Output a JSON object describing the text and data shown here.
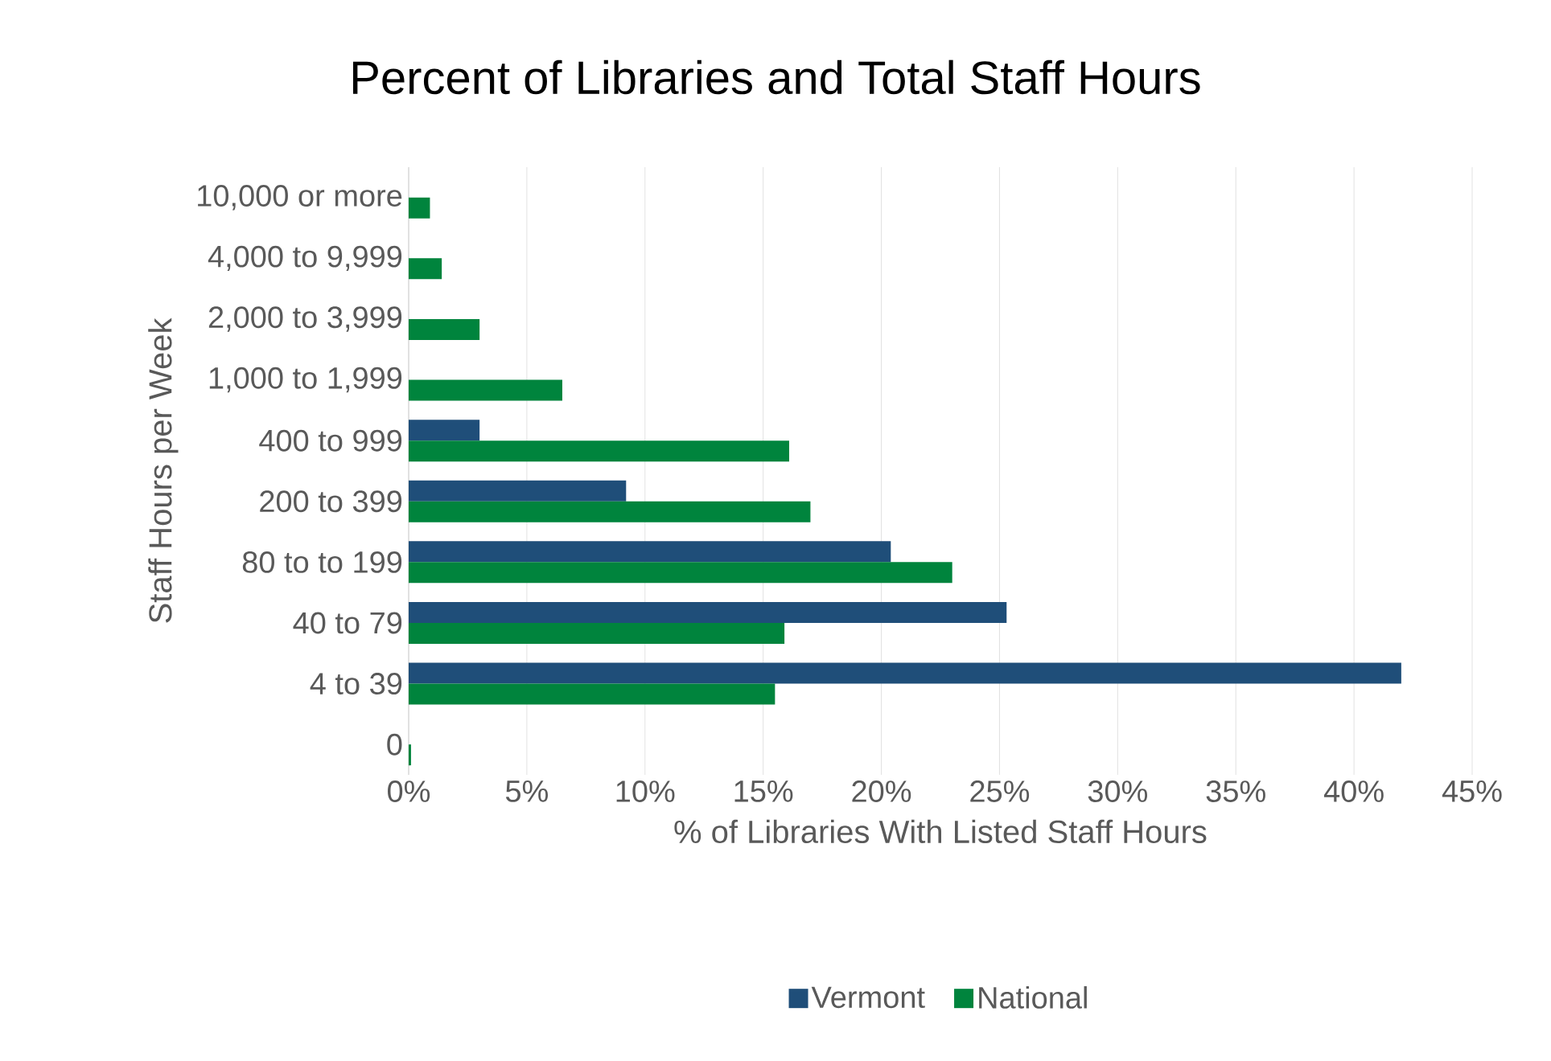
{
  "chart_data": {
    "type": "bar",
    "orientation": "horizontal",
    "title": "Percent of Libraries and Total Staff Hours",
    "xlabel": "% of Libraries With Listed Staff Hours",
    "ylabel": "Staff Hours per Week",
    "categories": [
      "10,000 or more",
      "4,000 to 9,999",
      "2,000 to 3,999",
      "1,000 to 1,999",
      "400 to 999",
      "200 to 399",
      "80 to to 199",
      "40 to 79",
      "4 to 39",
      "0"
    ],
    "series": [
      {
        "name": "Vermont",
        "color": "#1f4e79",
        "values": [
          null,
          null,
          null,
          null,
          3.0,
          9.2,
          20.4,
          25.3,
          42.0,
          null
        ]
      },
      {
        "name": "National",
        "color": "#00843d",
        "values": [
          0.9,
          1.4,
          3.0,
          6.5,
          16.1,
          17.0,
          23.0,
          15.9,
          15.5,
          0.1
        ]
      }
    ],
    "xlim": [
      0,
      45
    ],
    "xticks": [
      {
        "value": 0,
        "label": "0%"
      },
      {
        "value": 5,
        "label": "5%"
      },
      {
        "value": 10,
        "label": "10%"
      },
      {
        "value": 15,
        "label": "15%"
      },
      {
        "value": 20,
        "label": "20%"
      },
      {
        "value": 25,
        "label": "25%"
      },
      {
        "value": 30,
        "label": "30%"
      },
      {
        "value": 35,
        "label": "35%"
      },
      {
        "value": 40,
        "label": "40%"
      },
      {
        "value": 45,
        "label": "45%"
      }
    ],
    "grid": "x",
    "legend": "bottom"
  }
}
